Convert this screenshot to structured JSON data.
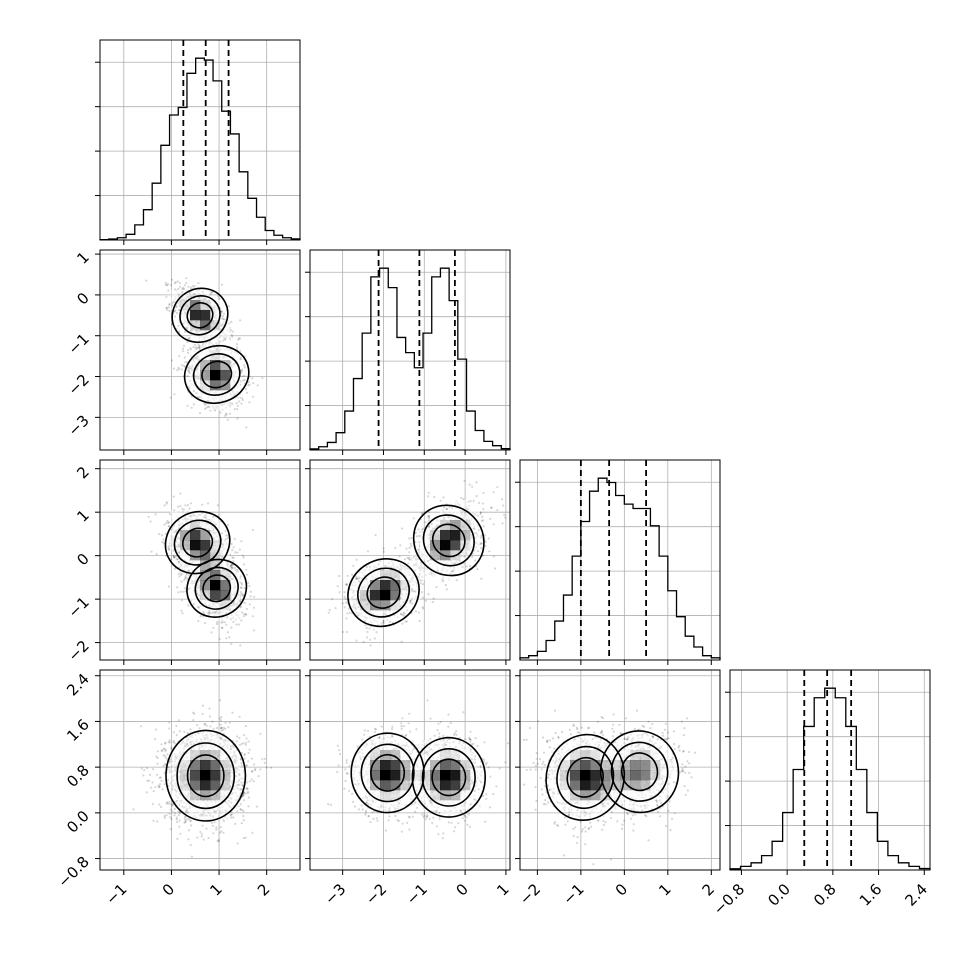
{
  "chart_data": {
    "type": "corner",
    "grid": true,
    "params": [
      {
        "range": [
          -1.5,
          2.7
        ],
        "ticks": [
          -1,
          0,
          1,
          2
        ],
        "tick_labels": [
          "−1",
          "0",
          "1",
          "2"
        ]
      },
      {
        "range": [
          -3.8,
          1.1
        ],
        "ticks": [
          -3,
          -2,
          -1,
          0,
          1
        ],
        "tick_labels": [
          "−3",
          "−2",
          "−1",
          "0",
          "1"
        ]
      },
      {
        "range": [
          -2.4,
          2.2
        ],
        "ticks": [
          -2,
          -1,
          0,
          1,
          2
        ],
        "tick_labels": [
          "−2",
          "−1",
          "0",
          "1",
          "2"
        ]
      },
      {
        "range": [
          -1.0,
          2.5
        ],
        "ticks": [
          -0.8,
          0.0,
          0.8,
          1.6,
          2.4
        ],
        "tick_labels": [
          "−0.8",
          "0.0",
          "0.8",
          "1.6",
          "2.4"
        ]
      }
    ],
    "histograms": [
      {
        "param": 0,
        "edges_range": [
          -1.5,
          2.7
        ],
        "counts": [
          0.2,
          0.5,
          1.2,
          3,
          8,
          16,
          30,
          50,
          66,
          70,
          88,
          96,
          95,
          84,
          68,
          56,
          36,
          22,
          12,
          5,
          2.5,
          1.2,
          0.6
        ],
        "quantiles": [
          0.25,
          0.72,
          1.2
        ]
      },
      {
        "param": 1,
        "edges_range": [
          -3.8,
          1.1
        ],
        "counts": [
          0.5,
          1.5,
          3.5,
          8,
          18,
          33,
          54,
          80,
          84,
          75,
          52,
          45,
          38,
          54,
          80,
          84,
          69,
          42,
          18,
          9,
          4,
          2,
          0.6
        ],
        "quantiles": [
          -2.12,
          -1.12,
          -0.25
        ]
      },
      {
        "param": 2,
        "edges_range": [
          -2.4,
          2.2
        ],
        "counts": [
          1,
          2,
          4,
          9,
          18,
          30,
          48,
          64,
          78,
          84,
          82,
          76,
          72,
          70,
          70,
          62,
          48,
          32,
          20,
          11,
          6,
          2,
          1
        ],
        "quantiles": [
          -1.0,
          -0.35,
          0.5
        ]
      },
      {
        "param": 3,
        "edges_range": [
          -1.0,
          2.5
        ],
        "counts": [
          0.5,
          1.5,
          3,
          6,
          12,
          24,
          42,
          60,
          72,
          76,
          72,
          60,
          42,
          24,
          12,
          6,
          3,
          1.5,
          0.6
        ],
        "quantiles": [
          0.3,
          0.7,
          1.12
        ]
      }
    ],
    "pairs": [
      {
        "x": 0,
        "y": 1,
        "components": [
          {
            "mean": [
              0.6,
              -0.5
            ],
            "sd": [
              0.28,
              0.35
            ],
            "rho": -0.5,
            "w": 0.5
          },
          {
            "mean": [
              0.95,
              -1.95
            ],
            "sd": [
              0.3,
              0.4
            ],
            "rho": -0.2,
            "w": 0.5
          }
        ]
      },
      {
        "x": 0,
        "y": 2,
        "components": [
          {
            "mean": [
              0.55,
              0.3
            ],
            "sd": [
              0.32,
              0.38
            ],
            "rho": -0.35,
            "w": 0.5
          },
          {
            "mean": [
              0.95,
              -0.75
            ],
            "sd": [
              0.3,
              0.35
            ],
            "rho": -0.3,
            "w": 0.5
          }
        ]
      },
      {
        "x": 0,
        "y": 3,
        "components": [
          {
            "mean": [
              0.72,
              0.65
            ],
            "sd": [
              0.42,
              0.4
            ],
            "rho": 0,
            "w": 1.0
          }
        ]
      },
      {
        "x": 1,
        "y": 2,
        "components": [
          {
            "mean": [
              -2.0,
              -0.85
            ],
            "sd": [
              0.45,
              0.38
            ],
            "rho": 0.3,
            "w": 0.5
          },
          {
            "mean": [
              -0.4,
              0.35
            ],
            "sd": [
              0.42,
              0.42
            ],
            "rho": 0.4,
            "w": 0.5
          }
        ]
      },
      {
        "x": 1,
        "y": 3,
        "components": [
          {
            "mean": [
              -1.9,
              0.7
            ],
            "sd": [
              0.45,
              0.35
            ],
            "rho": 0,
            "w": 0.5
          },
          {
            "mean": [
              -0.4,
              0.62
            ],
            "sd": [
              0.45,
              0.35
            ],
            "rho": 0,
            "w": 0.5
          }
        ]
      },
      {
        "x": 2,
        "y": 3,
        "components": [
          {
            "mean": [
              -0.9,
              0.62
            ],
            "sd": [
              0.45,
              0.38
            ],
            "rho": -0.1,
            "w": 0.55
          },
          {
            "mean": [
              0.35,
              0.72
            ],
            "sd": [
              0.45,
              0.36
            ],
            "rho": 0.1,
            "w": 0.45
          }
        ]
      }
    ]
  }
}
